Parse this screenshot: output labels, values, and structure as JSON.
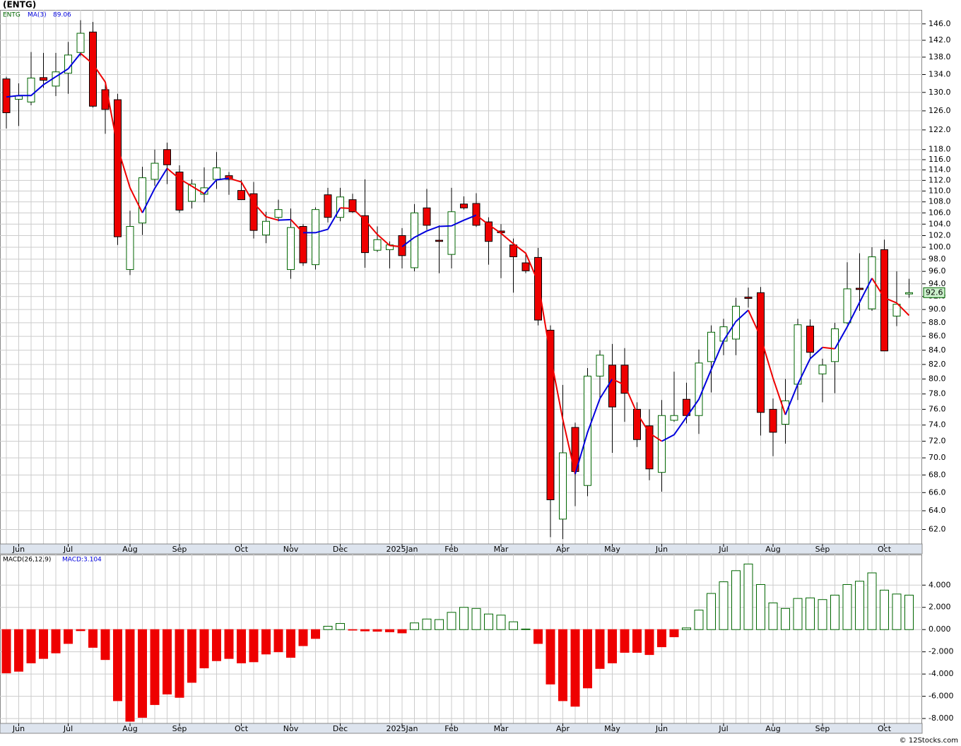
{
  "title": "(ENTG)",
  "credit": "© 12Stocks.com",
  "chart_data": [
    {
      "type": "candlestick",
      "ticker_label": "ENTG",
      "ma_label": "MA(3)",
      "ma_value_label": "89.06",
      "last_price": 92.6,
      "categories": [
        null,
        "Jun",
        null,
        null,
        null,
        "Jul",
        null,
        null,
        null,
        null,
        "Aug",
        null,
        null,
        null,
        "Sep",
        null,
        null,
        null,
        null,
        "Oct",
        null,
        null,
        null,
        "Nov",
        null,
        null,
        null,
        "Dec",
        null,
        null,
        null,
        null,
        "2025Jan",
        null,
        null,
        null,
        "Feb",
        null,
        null,
        null,
        "Mar",
        null,
        null,
        null,
        null,
        "Apr",
        null,
        null,
        null,
        "May",
        null,
        null,
        null,
        "Jun",
        null,
        null,
        null,
        null,
        "Jul",
        null,
        null,
        null,
        "Aug",
        null,
        null,
        null,
        "Sep",
        null,
        null,
        null,
        null,
        "Oct",
        null,
        null
      ],
      "open": [
        133,
        128.5,
        127.9,
        133.3,
        131.4,
        134.3,
        139.1,
        144,
        130.6,
        128.4,
        96.3,
        104.2,
        112.2,
        118,
        113.6,
        108.1,
        109.4,
        112.2,
        112.9,
        110.1,
        109.5,
        102.1,
        105.2,
        96.3,
        103.6,
        97.1,
        109.3,
        105.2,
        108.4,
        105.5,
        99.5,
        99.6,
        102,
        96.6,
        106.9,
        101.2,
        98.8,
        107.6,
        107.7,
        104.4,
        102.8,
        100.4,
        97.4,
        98.3,
        86.9,
        63.1,
        73.7,
        66.8,
        80.4,
        81.9,
        81.9,
        76,
        73.9,
        68.3,
        74.6,
        77.3,
        75.2,
        82.4,
        85.3,
        85.6,
        91.9,
        92.6,
        76,
        74.1,
        79.3,
        87.5,
        80.7,
        82.4,
        88,
        93.3,
        90.1,
        99.6,
        89,
        92.4
      ],
      "high": [
        133.5,
        132,
        139.2,
        139,
        139,
        141.6,
        146.9,
        146.5,
        131.9,
        129.7,
        106.4,
        114.6,
        118,
        119.4,
        114.9,
        112.2,
        114.5,
        117.5,
        113.6,
        112.1,
        111.7,
        106.2,
        108.4,
        106.8,
        104,
        107,
        110.6,
        110.6,
        109.5,
        112.2,
        103.6,
        101,
        103.3,
        107.6,
        110.4,
        103.8,
        110.6,
        109,
        109.6,
        105.2,
        104,
        101.5,
        98.8,
        99.9,
        87.6,
        79.2,
        74.3,
        81.5,
        84,
        84.9,
        84.3,
        76.9,
        76,
        77.2,
        81,
        79.5,
        84.1,
        87.6,
        88.6,
        91.8,
        93.4,
        93.5,
        77.4,
        80,
        88.6,
        88.5,
        82.8,
        88,
        97.5,
        99,
        100,
        101.3,
        96,
        94.8
      ],
      "low": [
        122.3,
        122.8,
        127.2,
        131,
        129.2,
        129.7,
        138.2,
        126.7,
        121.2,
        100.4,
        95.4,
        102.1,
        111,
        111.3,
        106,
        106.8,
        107.9,
        110.4,
        109.3,
        108.4,
        101.5,
        100.7,
        104.5,
        94.8,
        96.9,
        96.3,
        104.3,
        104.5,
        106,
        96.6,
        99.2,
        96.5,
        96.5,
        96,
        103,
        95.7,
        96.5,
        106.6,
        103.5,
        97.1,
        94.9,
        92.6,
        95.7,
        87.6,
        61.2,
        61,
        64.5,
        65.6,
        77.2,
        70.6,
        74.4,
        71.3,
        67.4,
        66.1,
        74.4,
        74.2,
        72.9,
        78.2,
        83.3,
        83.3,
        90.3,
        72.7,
        70.2,
        71.7,
        77.2,
        82.6,
        76.9,
        78.1,
        87.8,
        89.8,
        89.8,
        83.9,
        87.5,
        91.8
      ],
      "close": [
        125.6,
        129.2,
        133.2,
        132.7,
        134.6,
        138.5,
        143.7,
        127,
        126.3,
        101.8,
        103.6,
        112.5,
        115.3,
        115,
        106.5,
        111.3,
        110.6,
        114.4,
        112.2,
        108.4,
        102.9,
        104.5,
        106.6,
        103.4,
        97.4,
        106.6,
        105.2,
        108.9,
        106.2,
        99.1,
        101.3,
        100.4,
        98.6,
        106,
        103.8,
        101,
        106.2,
        106.9,
        103.8,
        101,
        102.5,
        98.4,
        96.1,
        88.4,
        65.2,
        70.6,
        68.4,
        80.4,
        83.3,
        76.3,
        78.1,
        72.2,
        68.7,
        75.2,
        75.2,
        75.2,
        82.2,
        86.6,
        87.4,
        90.5,
        91.7,
        75.6,
        73.1,
        77.1,
        87.7,
        83.7,
        81.9,
        87.1,
        93.2,
        93.1,
        98.4,
        83.9,
        90.8,
        92.6
      ],
      "ma": [
        129,
        129.3,
        129.3,
        131.7,
        133.5,
        135.3,
        138.9,
        136.4,
        132.3,
        118.4,
        110.6,
        106,
        110.5,
        114.3,
        112.3,
        110.9,
        109.5,
        112.1,
        112.4,
        111.7,
        107.8,
        105.3,
        104.7,
        104.8,
        102.5,
        102.5,
        103.1,
        106.9,
        106.8,
        104.7,
        102.2,
        100.3,
        100.1,
        101.7,
        102.8,
        103.6,
        103.7,
        104.7,
        105.6,
        103.9,
        102.4,
        100.6,
        99,
        94.3,
        83.2,
        74.7,
        68.1,
        73.1,
        77.4,
        80,
        79.2,
        75.5,
        73,
        72,
        72.8,
        75,
        77.3,
        81.3,
        85.4,
        88.2,
        89.9,
        85.9,
        80.1,
        75.3,
        79.3,
        82.8,
        84.4,
        84.2,
        87.4,
        91.1,
        94.9,
        91.8,
        91,
        89.1
      ],
      "up_color": "#006600",
      "down_color": "#ee0000",
      "ma_up_color": "#0000dd",
      "ma_down_color": "#ee0000",
      "log_scale": true,
      "grid": true,
      "ylim": [
        60.5,
        149.5
      ],
      "yticks": [
        {
          "value": 146,
          "label": "146.0"
        },
        {
          "value": 142,
          "label": "142.0"
        },
        {
          "value": 138,
          "label": "138.0"
        },
        {
          "value": 134,
          "label": "134.0"
        },
        {
          "value": 130,
          "label": "130.0"
        },
        {
          "value": 126,
          "label": "126.0"
        },
        {
          "value": 122,
          "label": "122.0"
        },
        {
          "value": 118,
          "label": "118.0"
        },
        {
          "value": 116,
          "label": "116.0"
        },
        {
          "value": 114,
          "label": "114.0"
        },
        {
          "value": 112,
          "label": "112.0"
        },
        {
          "value": 110,
          "label": "110.0"
        },
        {
          "value": 108,
          "label": "108.0"
        },
        {
          "value": 106,
          "label": "106.0"
        },
        {
          "value": 104,
          "label": "104.0"
        },
        {
          "value": 102,
          "label": "102.0"
        },
        {
          "value": 100,
          "label": "100.0"
        },
        {
          "value": 98,
          "label": "98.0"
        },
        {
          "value": 96,
          "label": "96.0"
        },
        {
          "value": 94,
          "label": "94.0"
        },
        {
          "value": 92,
          "label": "92.0"
        },
        {
          "value": 90,
          "label": "90.0"
        },
        {
          "value": 88,
          "label": "88.0"
        },
        {
          "value": 86,
          "label": "86.0"
        },
        {
          "value": 84,
          "label": "84.0"
        },
        {
          "value": 82,
          "label": "82.0"
        },
        {
          "value": 80,
          "label": "80.0"
        },
        {
          "value": 78,
          "label": "78.0"
        },
        {
          "value": 76,
          "label": "76.0"
        },
        {
          "value": 74,
          "label": "74.0"
        },
        {
          "value": 72,
          "label": "72.0"
        },
        {
          "value": 70,
          "label": "70.0"
        },
        {
          "value": 68,
          "label": "68.0"
        },
        {
          "value": 66,
          "label": "66.0"
        },
        {
          "value": 64,
          "label": "64.0"
        },
        {
          "value": 62,
          "label": "62.0"
        }
      ]
    },
    {
      "type": "bar",
      "title": "MACD(26,12,9)",
      "legend_label": "MACD:3.104",
      "values": [
        -3.9,
        -3.75,
        -3,
        -2.6,
        -2.1,
        -1.25,
        -0.1,
        -1.6,
        -2.7,
        -6.4,
        -8.25,
        -7.9,
        -6.75,
        -5.8,
        -6.1,
        -4.75,
        -3.45,
        -2.8,
        -2.6,
        -3,
        -2.9,
        -2.2,
        -2,
        -2.5,
        -1.45,
        -0.8,
        0.3,
        0.55,
        -0.05,
        -0.12,
        -0.15,
        -0.2,
        -0.3,
        0.6,
        0.95,
        0.9,
        1.55,
        2,
        1.9,
        1.4,
        1.3,
        0.7,
        0.05,
        -1.25,
        -4.9,
        -6.4,
        -6.9,
        -5.25,
        -3.5,
        -3,
        -2.05,
        -2.05,
        -2.25,
        -1.55,
        -0.65,
        0.15,
        1.75,
        3.25,
        4.3,
        5.3,
        5.9,
        4.05,
        2.4,
        1.9,
        2.8,
        2.85,
        2.7,
        3.1,
        4.05,
        4.35,
        5.1,
        3.55,
        3.2,
        3.1
      ],
      "pos_color": "#006600",
      "neg_color": "#ee0000",
      "grid": true,
      "ylim": [
        -8.44,
        6.75
      ],
      "yticks": [
        {
          "value": 4,
          "label": "4.000"
        },
        {
          "value": 2,
          "label": "2.000"
        },
        {
          "value": 0,
          "label": "0.000"
        },
        {
          "value": -2,
          "label": "-2.000"
        },
        {
          "value": -4,
          "label": "-4.000"
        },
        {
          "value": -6,
          "label": "-6.000"
        },
        {
          "value": -8,
          "label": "-8.000"
        }
      ]
    }
  ]
}
